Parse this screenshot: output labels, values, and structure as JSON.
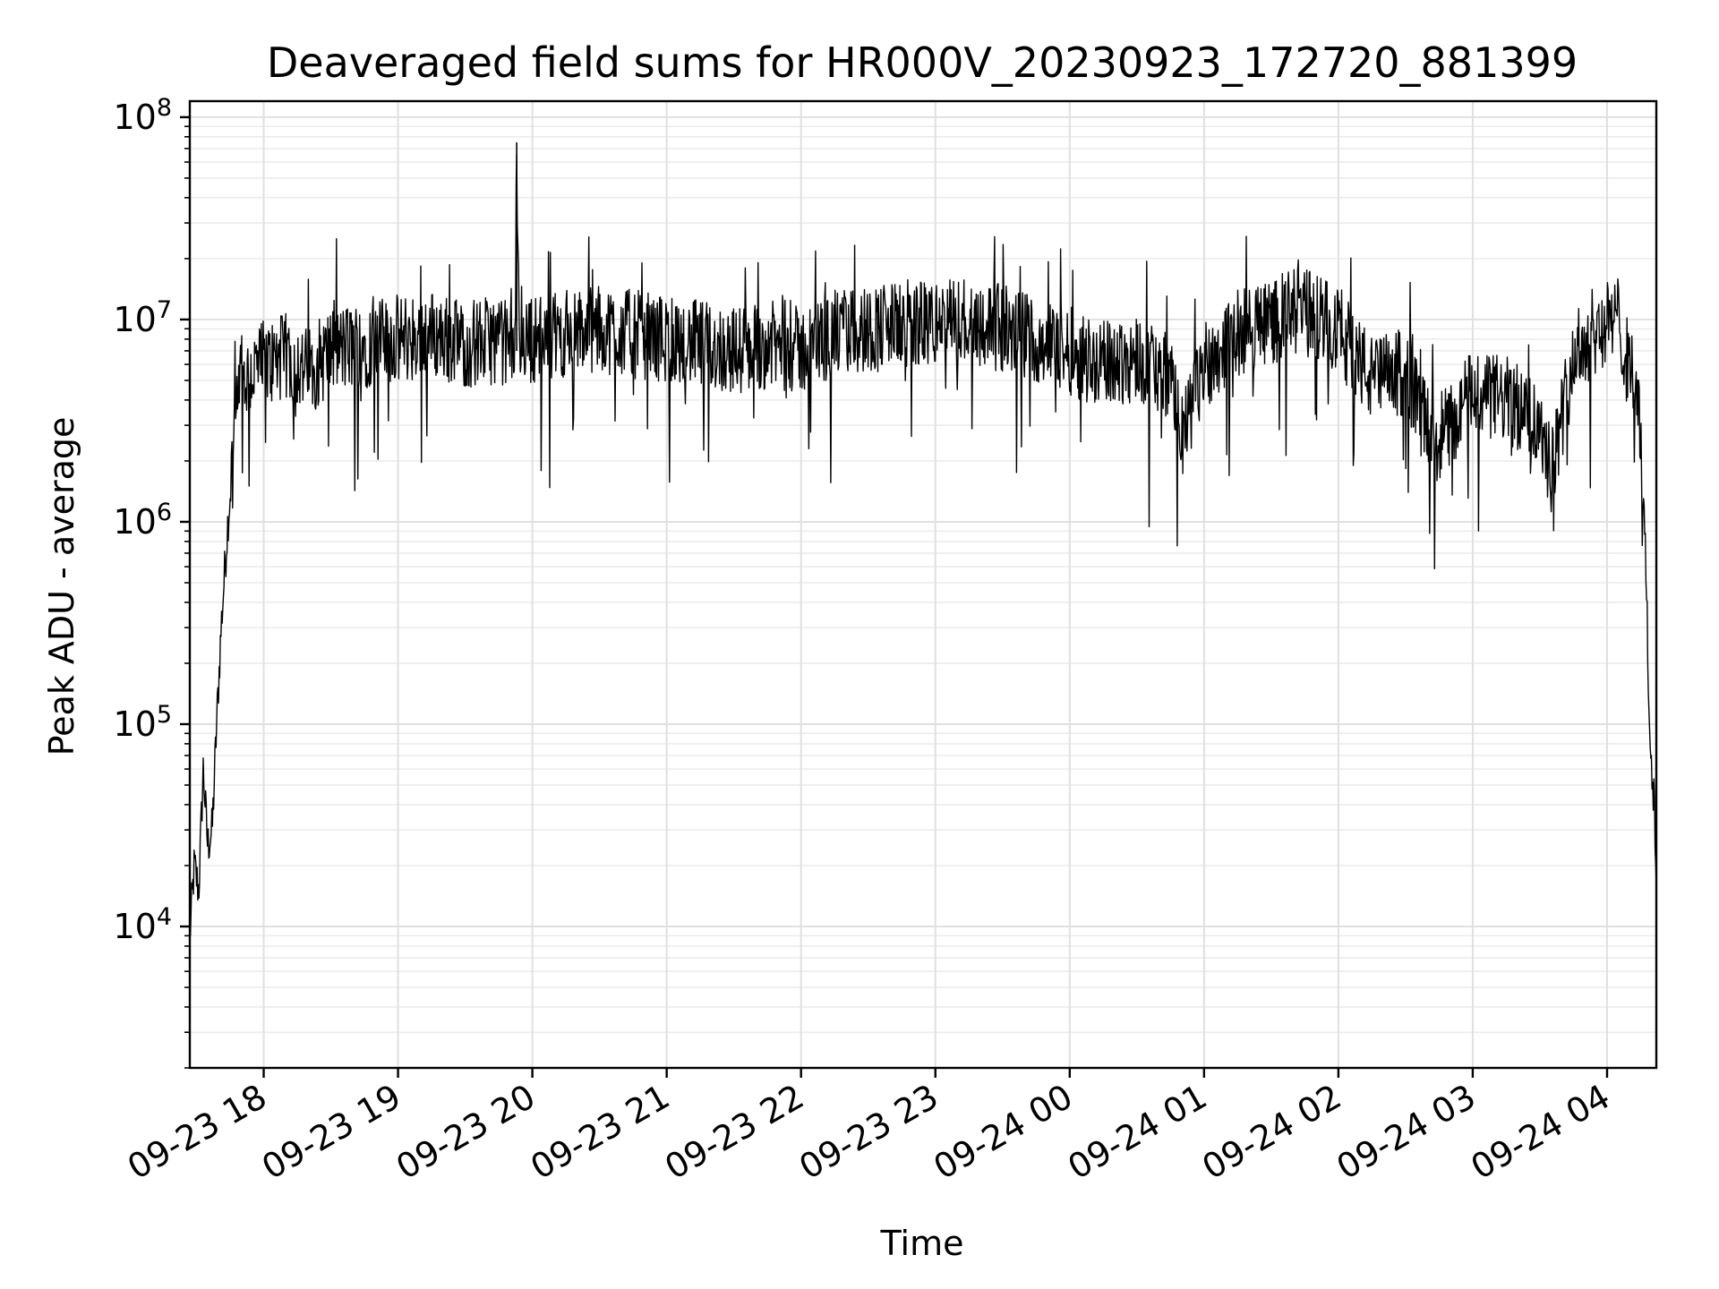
{
  "chart_data": {
    "type": "line",
    "title": "Deaveraged field sums for HR000V_20230923_172720_881399",
    "xlabel": "Time",
    "ylabel": "Peak ADU - average",
    "yscale": "log",
    "ylim": [
      2000,
      120000000
    ],
    "xlim": [
      "2023-09-23 17:27",
      "2023-09-24 04:22"
    ],
    "grid": true,
    "x_ticks": [
      "2023-09-23 18:00",
      "2023-09-23 19:00",
      "2023-09-23 20:00",
      "2023-09-23 21:00",
      "2023-09-23 22:00",
      "2023-09-23 23:00",
      "2023-09-24 00:00",
      "2023-09-24 01:00",
      "2023-09-24 02:00",
      "2023-09-24 03:00",
      "2023-09-24 04:00"
    ],
    "x_tick_labels": [
      "09-23 18",
      "09-23 19",
      "09-23 20",
      "09-23 21",
      "09-23 22",
      "09-23 23",
      "09-24 00",
      "09-24 01",
      "09-24 02",
      "09-24 03",
      "09-24 04"
    ],
    "y_ticks": [
      10000,
      100000,
      1000000,
      10000000,
      100000000
    ],
    "y_tick_labels": [
      {
        "base": "10",
        "exp": "4"
      },
      {
        "base": "10",
        "exp": "5"
      },
      {
        "base": "10",
        "exp": "6"
      },
      {
        "base": "10",
        "exp": "7"
      },
      {
        "base": "10",
        "exp": "8"
      }
    ],
    "series": [
      {
        "color": "#000000",
        "x": [
          "2023-09-23 17:27",
          "2023-09-23 17:29",
          "2023-09-23 17:31",
          "2023-09-23 17:33",
          "2023-09-23 17:35",
          "2023-09-23 17:37",
          "2023-09-23 17:39",
          "2023-09-23 17:41",
          "2023-09-23 17:44",
          "2023-09-23 17:47",
          "2023-09-23 17:50",
          "2023-09-23 17:55",
          "2023-09-23 18:00",
          "2023-09-23 18:10",
          "2023-09-23 18:20",
          "2023-09-23 18:30",
          "2023-09-23 18:45",
          "2023-09-23 19:00",
          "2023-09-23 19:15",
          "2023-09-23 19:30",
          "2023-09-23 19:45",
          "2023-09-23 19:52",
          "2023-09-23 19:53",
          "2023-09-23 19:54",
          "2023-09-23 20:00",
          "2023-09-23 20:15",
          "2023-09-23 20:30",
          "2023-09-23 20:45",
          "2023-09-23 21:00",
          "2023-09-23 21:15",
          "2023-09-23 21:30",
          "2023-09-23 21:45",
          "2023-09-23 22:00",
          "2023-09-23 22:15",
          "2023-09-23 22:30",
          "2023-09-23 22:45",
          "2023-09-23 23:00",
          "2023-09-23 23:15",
          "2023-09-23 23:30",
          "2023-09-23 23:45",
          "2023-09-24 00:00",
          "2023-09-24 00:15",
          "2023-09-24 00:30",
          "2023-09-24 00:45",
          "2023-09-24 00:50",
          "2023-09-24 01:00",
          "2023-09-24 01:15",
          "2023-09-24 01:30",
          "2023-09-24 01:45",
          "2023-09-24 02:00",
          "2023-09-24 02:15",
          "2023-09-24 02:30",
          "2023-09-24 02:42",
          "2023-09-24 02:50",
          "2023-09-24 03:00",
          "2023-09-24 03:15",
          "2023-09-24 03:30",
          "2023-09-24 03:35",
          "2023-09-24 03:45",
          "2023-09-24 03:55",
          "2023-09-24 04:05",
          "2023-09-24 04:12",
          "2023-09-24 04:15",
          "2023-09-24 04:17",
          "2023-09-24 04:19",
          "2023-09-24 04:21",
          "2023-09-24 04:22"
        ],
        "y": [
          9000,
          20000,
          15000,
          60000,
          25000,
          30000,
          100000,
          300000,
          1000000,
          2500000,
          5000000,
          5500000,
          6000000,
          6500000,
          5500000,
          7000000,
          7500000,
          8000000,
          8500000,
          7500000,
          8000000,
          7000000,
          75000000,
          8000000,
          8000000,
          8500000,
          9000000,
          8500000,
          8000000,
          7500000,
          7000000,
          7500000,
          7000000,
          8500000,
          9000000,
          9500000,
          9500000,
          10000000,
          9000000,
          8000000,
          7000000,
          6000000,
          6500000,
          5000000,
          2500000,
          6000000,
          8500000,
          10000000,
          11000000,
          9000000,
          5000000,
          5500000,
          2500000,
          3000000,
          4500000,
          4000000,
          3000000,
          1800000,
          6500000,
          9000000,
          10000000,
          5000000,
          2500000,
          800000,
          100000,
          40000,
          16000
        ]
      }
    ]
  }
}
